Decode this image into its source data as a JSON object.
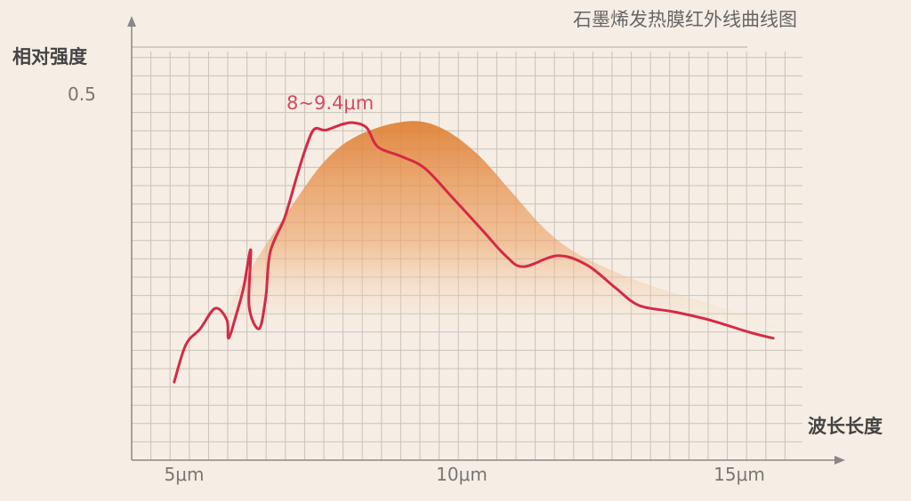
{
  "chart_data": {
    "type": "line",
    "title": "石墨烯发热膜红外线曲线图",
    "xlabel": "波长长度",
    "ylabel": "相对强度",
    "x_ticks": [
      "5μm",
      "10μm",
      "15μm"
    ],
    "x_tick_values": [
      5,
      10,
      15
    ],
    "y_ticks": [
      "0.5"
    ],
    "y_tick_values": [
      0.5
    ],
    "xlim": [
      3.5,
      16.5
    ],
    "ylim": [
      0,
      0.56
    ],
    "grid": true,
    "annotation": "8~9.4μm",
    "colors": {
      "red_line": "#d42a45",
      "orange_area": "#e0843a",
      "background": "#f6eee4"
    },
    "series": [
      {
        "type": "line",
        "x": [
          4.82,
          5.03,
          5.29,
          5.56,
          5.77,
          5.8,
          5.93,
          6.07,
          6.2,
          6.17,
          6.35,
          6.47,
          6.55,
          6.81,
          7.02,
          7.18,
          7.34,
          7.55,
          7.85,
          8.06,
          8.29,
          8.49,
          8.91,
          9.33,
          9.84,
          10.37,
          10.79,
          11.11,
          11.73,
          12.26,
          12.77,
          13.19,
          13.83,
          14.46,
          15.19,
          15.61
        ],
        "y": [
          0.107,
          0.158,
          0.18,
          0.208,
          0.192,
          0.167,
          0.197,
          0.236,
          0.288,
          0.211,
          0.18,
          0.223,
          0.285,
          0.332,
          0.386,
          0.425,
          0.453,
          0.452,
          0.46,
          0.462,
          0.455,
          0.429,
          0.416,
          0.4,
          0.359,
          0.315,
          0.28,
          0.265,
          0.28,
          0.267,
          0.236,
          0.212,
          0.203,
          0.192,
          0.175,
          0.167
        ]
      },
      {
        "type": "area",
        "x": [
          5.77,
          6.28,
          6.92,
          7.55,
          8.17,
          9.01,
          9.63,
          10.27,
          10.9,
          11.52,
          12.15,
          13.19,
          14.25,
          15.71
        ],
        "y": [
          0.208,
          0.272,
          0.346,
          0.411,
          0.446,
          0.464,
          0.455,
          0.42,
          0.367,
          0.315,
          0.28,
          0.245,
          0.219,
          0.184
        ]
      }
    ]
  }
}
